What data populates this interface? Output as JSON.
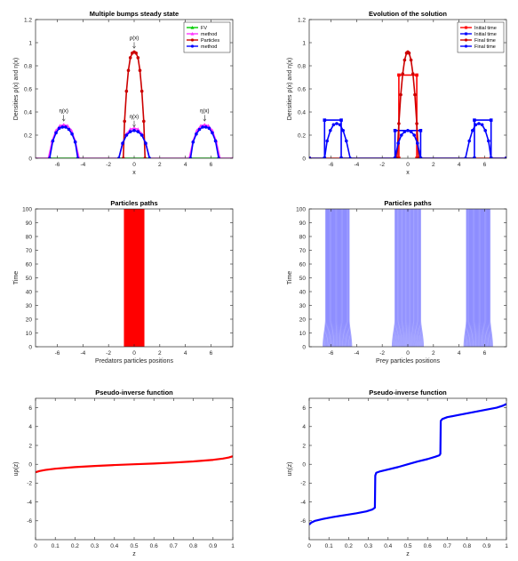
{
  "chart_data": [
    {
      "type": "line",
      "title": "Multiple bumps steady state",
      "xlabel": "x",
      "ylabel": "Densities ρ(x) and η(x)",
      "xlim": [
        -7.7,
        7.7
      ],
      "ylim": [
        0,
        1.2
      ],
      "xticks": [
        -6,
        -4,
        -2,
        0,
        2,
        4,
        6
      ],
      "yticks": [
        0,
        0.2,
        0.4,
        0.6,
        0.8,
        1,
        1.2
      ],
      "ytick_labels": [
        "0",
        "0.2",
        "0.4",
        "0.6",
        "0.8",
        "1",
        "1.2"
      ],
      "legend": [
        "FV",
        "method",
        "Particles",
        "method"
      ],
      "legend_position": "top-right",
      "annotations": [
        "η(x)",
        "ρ(x)",
        "η(x)",
        "η(x)"
      ],
      "series": [
        {
          "color": "#00cc00",
          "marker": "triangle",
          "segments": [
            {
              "x": [
                -7.7,
                7.7
              ],
              "y": [
                0,
                0
              ]
            }
          ]
        },
        {
          "color": "#ff33ff",
          "marker": "triangle",
          "segments": [
            {
              "x": [
                -7.7,
                -6.7
              ],
              "y": [
                0,
                0
              ]
            },
            {
              "x": [
                -6.7,
                -6.4,
                -6.1,
                -5.8,
                -5.5,
                -5.2,
                -4.9,
                -4.6,
                -4.3
              ],
              "y": [
                0,
                0.15,
                0.24,
                0.28,
                0.29,
                0.28,
                0.24,
                0.15,
                0
              ]
            },
            {
              "x": [
                -4.3,
                -1.2
              ],
              "y": [
                0,
                0
              ]
            },
            {
              "x": [
                -1.2,
                -0.9,
                -0.6,
                -0.3,
                0,
                0.3,
                0.6,
                0.9,
                1.2
              ],
              "y": [
                0,
                0.13,
                0.21,
                0.25,
                0.26,
                0.25,
                0.21,
                0.13,
                0
              ]
            },
            {
              "x": [
                1.2,
                4.3
              ],
              "y": [
                0,
                0
              ]
            },
            {
              "x": [
                4.3,
                4.6,
                4.9,
                5.2,
                5.5,
                5.8,
                6.1,
                6.4,
                6.7
              ],
              "y": [
                0,
                0.15,
                0.24,
                0.28,
                0.29,
                0.28,
                0.24,
                0.15,
                0
              ]
            },
            {
              "x": [
                6.7,
                7.7
              ],
              "y": [
                0,
                0
              ]
            }
          ]
        },
        {
          "color": "#cc0000",
          "marker": "circle",
          "segments": [
            {
              "x": [
                -0.85,
                -0.75,
                -0.6,
                -0.45,
                -0.3,
                -0.15,
                0,
                0.15,
                0.3,
                0.45,
                0.6,
                0.75,
                0.85
              ],
              "y": [
                0,
                0.32,
                0.58,
                0.76,
                0.87,
                0.91,
                0.92,
                0.91,
                0.87,
                0.76,
                0.58,
                0.32,
                0
              ]
            }
          ]
        },
        {
          "color": "#0000ff",
          "marker": "circle",
          "segments": [
            {
              "x": [
                -6.6,
                -6.35,
                -6.1,
                -5.85,
                -5.6,
                -5.35,
                -5.1,
                -4.85,
                -4.6,
                -4.4
              ],
              "y": [
                0,
                0.15,
                0.22,
                0.26,
                0.27,
                0.27,
                0.25,
                0.21,
                0.14,
                0
              ]
            },
            {
              "x": [
                -1.2,
                -0.9,
                -0.6,
                -0.3,
                0,
                0.3,
                0.6,
                0.9,
                1.2
              ],
              "y": [
                0,
                0.13,
                0.2,
                0.23,
                0.24,
                0.23,
                0.2,
                0.13,
                0
              ]
            },
            {
              "x": [
                4.4,
                4.6,
                4.85,
                5.1,
                5.35,
                5.6,
                5.85,
                6.1,
                6.35,
                6.6
              ],
              "y": [
                0,
                0.14,
                0.21,
                0.25,
                0.27,
                0.27,
                0.26,
                0.22,
                0.15,
                0
              ]
            }
          ]
        }
      ]
    },
    {
      "type": "line",
      "title": "Evolution of the solution",
      "xlabel": "x",
      "ylabel": "Densities ρ(x) and η(x)",
      "xlim": [
        -7.7,
        7.7
      ],
      "ylim": [
        0,
        1.2
      ],
      "xticks": [
        -6,
        -4,
        -2,
        0,
        2,
        4,
        6
      ],
      "yticks": [
        0,
        0.2,
        0.4,
        0.6,
        0.8,
        1,
        1.2
      ],
      "ytick_labels": [
        "0",
        "0.2",
        "0.4",
        "0.6",
        "0.8",
        "1",
        "1.2"
      ],
      "legend": [
        "Initial time",
        "Initial time",
        "Final time",
        "Final time"
      ],
      "legend_position": "top-right",
      "series": [
        {
          "color": "#ff0000",
          "marker": "square",
          "segments": [
            {
              "x": [
                -7.7,
                -0.7,
                -0.7,
                0.7,
                0.7,
                7.7
              ],
              "y": [
                0,
                0,
                0.72,
                0.72,
                0,
                0
              ]
            }
          ]
        },
        {
          "color": "#0000ff",
          "marker": "square",
          "segments": [
            {
              "x": [
                -7.7,
                -6.5,
                -6.5,
                -5.2,
                -5.2,
                -1.0,
                -1.0,
                1.0,
                1.0,
                5.2,
                5.2,
                6.5,
                6.5,
                7.7
              ],
              "y": [
                0,
                0,
                0.33,
                0.33,
                0,
                0,
                0.24,
                0.24,
                0,
                0,
                0.33,
                0.33,
                0,
                0
              ]
            }
          ]
        },
        {
          "color": "#cc0000",
          "marker": "circle",
          "segments": [
            {
              "x": [
                -0.85,
                -0.7,
                -0.55,
                -0.4,
                -0.25,
                -0.1,
                0,
                0.1,
                0.25,
                0.4,
                0.55,
                0.7,
                0.85
              ],
              "y": [
                0,
                0.3,
                0.55,
                0.73,
                0.85,
                0.91,
                0.92,
                0.91,
                0.85,
                0.73,
                0.55,
                0.3,
                0
              ]
            }
          ]
        },
        {
          "color": "#0000ff",
          "marker": "circle",
          "segments": [
            {
              "x": [
                -6.5,
                -6.3,
                -6.05,
                -5.8,
                -5.55,
                -5.3,
                -5.05,
                -4.8,
                -4.5
              ],
              "y": [
                0,
                0.15,
                0.24,
                0.29,
                0.3,
                0.29,
                0.24,
                0.15,
                0
              ]
            },
            {
              "x": [
                -1.0,
                -0.75,
                -0.5,
                -0.25,
                0,
                0.25,
                0.5,
                0.75,
                1.0
              ],
              "y": [
                0,
                0.13,
                0.2,
                0.23,
                0.24,
                0.23,
                0.2,
                0.13,
                0
              ]
            },
            {
              "x": [
                4.5,
                4.8,
                5.05,
                5.3,
                5.55,
                5.8,
                6.05,
                6.3,
                6.5
              ],
              "y": [
                0,
                0.15,
                0.24,
                0.29,
                0.3,
                0.29,
                0.24,
                0.15,
                0
              ]
            }
          ]
        }
      ]
    },
    {
      "type": "area",
      "title": "Particles paths",
      "xlabel": "Predators particles positions",
      "ylabel": "Time",
      "xlim": [
        -7.7,
        7.7
      ],
      "ylim": [
        0,
        100
      ],
      "xticks": [
        -6,
        -4,
        -2,
        0,
        2,
        4,
        6
      ],
      "yticks": [
        0,
        10,
        20,
        30,
        40,
        50,
        60,
        70,
        80,
        90,
        100
      ],
      "bands": [
        {
          "x": [
            -0.8,
            0.8
          ],
          "color": "#ff0000"
        }
      ]
    },
    {
      "type": "area",
      "title": "Particles paths",
      "xlabel": "Prey particles positions",
      "ylabel": "Time",
      "xlim": [
        -7.7,
        7.7
      ],
      "ylim": [
        0,
        100
      ],
      "xticks": [
        -6,
        -4,
        -2,
        0,
        2,
        4,
        6
      ],
      "yticks": [
        0,
        10,
        20,
        30,
        40,
        50,
        60,
        70,
        80,
        90,
        100
      ],
      "bands": [
        {
          "x": [
            -6.6,
            -4.4
          ],
          "color": "#0000ff"
        },
        {
          "x": [
            -1.2,
            1.2
          ],
          "color": "#0000ff"
        },
        {
          "x": [
            4.4,
            6.6
          ],
          "color": "#0000ff"
        }
      ]
    },
    {
      "type": "line",
      "title": "Pseudo-inverse function",
      "xlabel": "z",
      "ylabel": "uρ(z)",
      "xlim": [
        0,
        1
      ],
      "ylim": [
        -8,
        7
      ],
      "xticks": [
        0,
        0.1,
        0.2,
        0.3,
        0.4,
        0.5,
        0.6,
        0.7,
        0.8,
        0.9,
        1
      ],
      "xtick_labels": [
        "0",
        "0.1",
        "0.2",
        "0.3",
        "0.4",
        "0.5",
        "0.6",
        "0.7",
        "0.8",
        "0.9",
        "1"
      ],
      "yticks": [
        -6,
        -4,
        -2,
        0,
        2,
        4,
        6
      ],
      "series": [
        {
          "color": "#ff0000",
          "segments": [
            {
              "x": [
                0,
                0.02,
                0.05,
                0.1,
                0.2,
                0.3,
                0.4,
                0.5,
                0.6,
                0.7,
                0.8,
                0.9,
                0.95,
                0.98,
                1
              ],
              "y": [
                -0.85,
                -0.72,
                -0.6,
                -0.47,
                -0.3,
                -0.18,
                -0.08,
                0,
                0.08,
                0.18,
                0.3,
                0.47,
                0.6,
                0.72,
                0.85
              ]
            }
          ]
        }
      ]
    },
    {
      "type": "line",
      "title": "Pseudo-inverse function",
      "xlabel": "z",
      "ylabel": "uη(z)",
      "xlim": [
        0,
        1
      ],
      "ylim": [
        -8,
        7
      ],
      "xticks": [
        0,
        0.1,
        0.2,
        0.3,
        0.4,
        0.5,
        0.6,
        0.7,
        0.8,
        0.9,
        1
      ],
      "xtick_labels": [
        "0",
        "0.1",
        "0.2",
        "0.3",
        "0.4",
        "0.5",
        "0.6",
        "0.7",
        "0.8",
        "0.9",
        "1"
      ],
      "yticks": [
        -6,
        -4,
        -2,
        0,
        2,
        4,
        6
      ],
      "series": [
        {
          "color": "#0000ff",
          "segments": [
            {
              "x": [
                0,
                0.01,
                0.03,
                0.07,
                0.12,
                0.18,
                0.24,
                0.29,
                0.32,
                0.333,
                0.335,
                0.34,
                0.36,
                0.4,
                0.45,
                0.5,
                0.55,
                0.6,
                0.64,
                0.66,
                0.665,
                0.667,
                0.675,
                0.7,
                0.75,
                0.8,
                0.85,
                0.9,
                0.95,
                0.98,
                1
              ],
              "y": [
                -6.4,
                -6.2,
                -6.0,
                -5.8,
                -5.6,
                -5.4,
                -5.2,
                -5.0,
                -4.8,
                -4.6,
                -1.2,
                -0.9,
                -0.75,
                -0.55,
                -0.3,
                0,
                0.3,
                0.55,
                0.8,
                0.95,
                1.1,
                4.6,
                4.8,
                5.0,
                5.2,
                5.4,
                5.6,
                5.8,
                6.0,
                6.2,
                6.4
              ]
            }
          ]
        }
      ]
    }
  ]
}
